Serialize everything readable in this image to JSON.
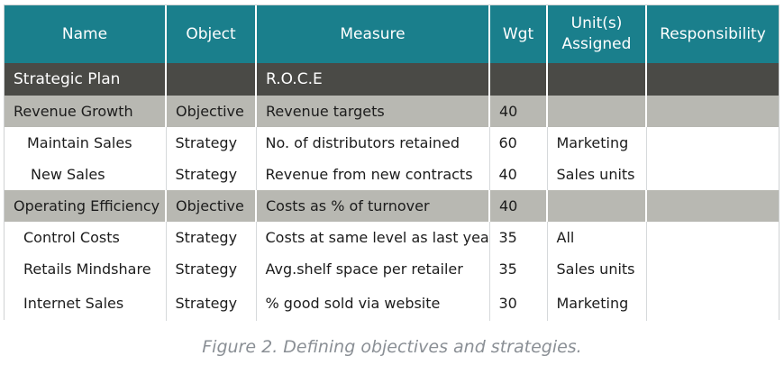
{
  "table": {
    "headers": [
      "Name",
      "Object",
      "Measure",
      "Wgt",
      "Unit(s)\nAssigned",
      "Responsibility"
    ],
    "rows": [
      {
        "type": "plan",
        "name": "Strategic Plan",
        "object": "",
        "measure": "R.O.C.E",
        "wgt": "",
        "units": "",
        "responsibility": ""
      },
      {
        "type": "objective",
        "name": "Revenue Growth",
        "object": "Objective",
        "measure": "Revenue targets",
        "wgt": "40",
        "units": "",
        "responsibility": ""
      },
      {
        "type": "strategy",
        "name": "Maintain Sales",
        "object": "Strategy",
        "measure": "No. of distributors retained",
        "wgt": "60",
        "units": "Marketing",
        "responsibility": ""
      },
      {
        "type": "strategy",
        "name": "New Sales",
        "object": "Strategy",
        "measure": "Revenue from new contracts",
        "wgt": "40",
        "units": "Sales units",
        "responsibility": ""
      },
      {
        "type": "objective",
        "name": "Operating Efficiency",
        "object": "Objective",
        "measure": "Costs as % of turnover",
        "wgt": "40",
        "units": "",
        "responsibility": ""
      },
      {
        "type": "strategy",
        "name": "Control Costs",
        "object": "Strategy",
        "measure": "Costs at same level as last year",
        "wgt": "35",
        "units": "All",
        "responsibility": ""
      },
      {
        "type": "strategy",
        "name": "Retails Mindshare",
        "object": "Strategy",
        "measure": "Avg.shelf space per retailer",
        "wgt": "35",
        "units": "Sales units",
        "responsibility": ""
      },
      {
        "type": "strategy",
        "name": "Internet Sales",
        "object": "Strategy",
        "measure": "% good sold via website",
        "wgt": "30",
        "units": "Marketing",
        "responsibility": ""
      }
    ]
  },
  "caption": "Figure 2. Defining objectives and strategies.",
  "colors": {
    "header_bg": "#1a7f8c",
    "plan_row_bg": "#4a4a46",
    "objective_row_bg": "#b8b8b2",
    "caption_text": "#8a8f95"
  }
}
